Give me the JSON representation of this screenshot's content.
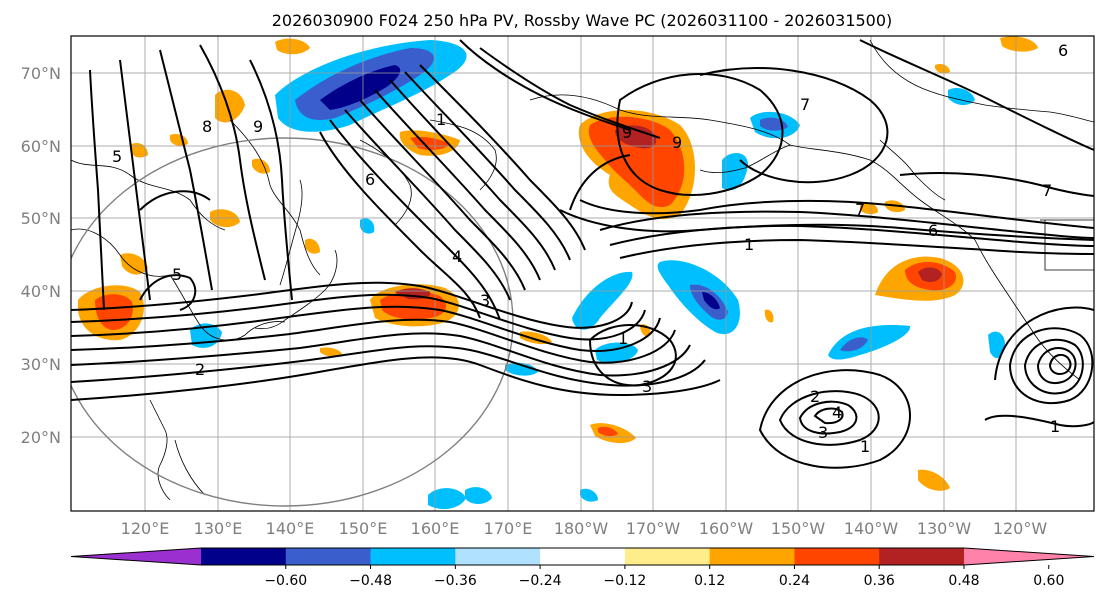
{
  "title": "2026030900 F024 250 hPa PV, Rossby Wave PC (2026031100 - 2026031500)",
  "lat_labels": [
    "70°N",
    "60°N",
    "50°N",
    "40°N",
    "30°N",
    "20°N"
  ],
  "lon_labels": [
    "120°E",
    "130°E",
    "140°E",
    "150°E",
    "160°E",
    "170°E",
    "180°W",
    "170°W",
    "160°W",
    "150°W",
    "140°W",
    "130°W",
    "120°W"
  ],
  "colorbar": {
    "tick_labels": [
      "−0.60",
      "−0.48",
      "−0.36",
      "−0.24",
      "−0.12",
      "0.12",
      "0.24",
      "0.36",
      "0.48",
      "0.60"
    ],
    "colors": [
      "#9b30d0",
      "#00008b",
      "#3a5fcd",
      "#00bfff",
      "#b0e2ff",
      "#ffffff",
      "#ffec8b",
      "#ffa500",
      "#ff4500",
      "#b22222",
      "#ff82ab"
    ]
  },
  "contour_labels": [
    "1",
    "2",
    "3",
    "4",
    "5",
    "6",
    "7",
    "8",
    "9"
  ],
  "label_list": [
    {
      "text": "1"
    },
    {
      "text": "1"
    },
    {
      "text": "1"
    },
    {
      "text": "1"
    },
    {
      "text": "1"
    },
    {
      "text": "2"
    },
    {
      "text": "2"
    },
    {
      "text": "3"
    },
    {
      "text": "3"
    },
    {
      "text": "3"
    },
    {
      "text": "4"
    },
    {
      "text": "4"
    },
    {
      "text": "5"
    },
    {
      "text": "5"
    },
    {
      "text": "6"
    },
    {
      "text": "6"
    },
    {
      "text": "6"
    },
    {
      "text": "7"
    },
    {
      "text": "7"
    },
    {
      "text": "7"
    },
    {
      "text": "8"
    },
    {
      "text": "9"
    },
    {
      "text": "9"
    },
    {
      "text": "9"
    }
  ]
}
